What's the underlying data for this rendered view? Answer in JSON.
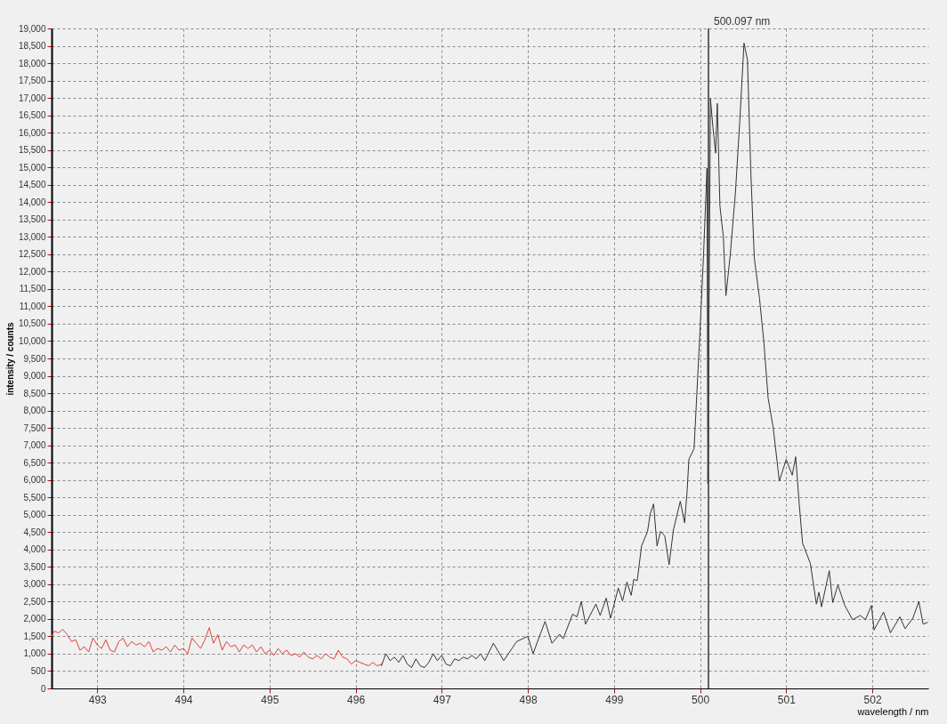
{
  "chart_data": {
    "type": "line",
    "xlabel": "wavelength / nm",
    "ylabel": "intensity / counts",
    "xlim": [
      492.47,
      502.65
    ],
    "ylim": [
      0,
      19000
    ],
    "xticks": [
      493,
      494,
      495,
      496,
      497,
      498,
      499,
      500,
      501,
      502
    ],
    "yticks": [
      0,
      500,
      {
        "value": 1000,
        "label": "1,000"
      },
      {
        "value": 1500,
        "label": "1,500"
      },
      {
        "value": 2000,
        "label": "2,000"
      },
      {
        "value": 2500,
        "label": "2,500"
      },
      {
        "value": 3000,
        "label": "3,000"
      },
      {
        "value": 3500,
        "label": "3,500"
      },
      {
        "value": 4000,
        "label": "4,000"
      },
      {
        "value": 4500,
        "label": "4,500"
      },
      {
        "value": 5000,
        "label": "5,000"
      },
      {
        "value": 5500,
        "label": "5,500"
      },
      {
        "value": 6000,
        "label": "6,000"
      },
      {
        "value": 6500,
        "label": "6,500"
      },
      {
        "value": 7000,
        "label": "7,000"
      },
      {
        "value": 7500,
        "label": "7,500"
      },
      {
        "value": 8000,
        "label": "8,000"
      },
      {
        "value": 8500,
        "label": "8,500"
      },
      {
        "value": 9000,
        "label": "9,000"
      },
      {
        "value": 9500,
        "label": "9,500"
      },
      {
        "value": 10000,
        "label": "10,000"
      },
      {
        "value": 10500,
        "label": "10,500"
      },
      {
        "value": 11000,
        "label": "11,000"
      },
      {
        "value": 11500,
        "label": "11,500"
      },
      {
        "value": 12000,
        "label": "12,000"
      },
      {
        "value": 12500,
        "label": "12,500"
      },
      {
        "value": 13000,
        "label": "13,000"
      },
      {
        "value": 13500,
        "label": "13,500"
      },
      {
        "value": 14000,
        "label": "14,000"
      },
      {
        "value": 14500,
        "label": "14,500"
      },
      {
        "value": 15000,
        "label": "15,000"
      },
      {
        "value": 15500,
        "label": "15,500"
      },
      {
        "value": 16000,
        "label": "16,000"
      },
      {
        "value": 16500,
        "label": "16,500"
      },
      {
        "value": 17000,
        "label": "17,000"
      },
      {
        "value": 17500,
        "label": "17,500"
      },
      {
        "value": 18000,
        "label": "18,000"
      },
      {
        "value": 18500,
        "label": "18,500"
      },
      {
        "value": 19000,
        "label": "19,000"
      }
    ],
    "grid": true,
    "line_style": "solid",
    "ref_lines": [
      {
        "axis": "x",
        "value": 500.097,
        "label": "500.097 nm",
        "color": "#333333"
      }
    ],
    "series": [
      {
        "color": "#e0403a",
        "x": [
          492.47,
          492.5,
          492.55,
          492.6,
          492.65,
          492.7,
          492.75,
          492.8,
          492.85,
          492.9,
          492.95,
          493.0,
          493.05,
          493.1,
          493.15,
          493.2,
          493.25,
          493.3,
          493.35,
          493.4,
          493.45,
          493.5,
          493.55,
          493.6,
          493.65,
          493.7,
          493.75,
          493.8,
          493.85,
          493.9,
          493.95,
          494.0,
          494.05,
          494.1,
          494.15,
          494.2,
          494.25,
          494.3,
          494.35,
          494.4,
          494.45,
          494.5,
          494.55,
          494.6,
          494.65,
          494.7,
          494.75,
          494.8,
          494.85,
          494.9,
          494.95,
          495.0,
          495.05,
          495.1,
          495.15,
          495.2,
          495.25,
          495.3,
          495.35,
          495.4,
          495.45,
          495.5,
          495.55,
          495.6,
          495.65,
          495.7,
          495.75,
          495.8,
          495.85,
          495.9,
          495.95,
          496.0,
          496.05,
          496.1,
          496.15,
          496.2,
          496.25,
          496.3
        ],
        "values": [
          1500,
          1650,
          1600,
          1700,
          1550,
          1350,
          1400,
          1100,
          1200,
          1050,
          1450,
          1250,
          1150,
          1400,
          1100,
          1050,
          1350,
          1450,
          1200,
          1350,
          1250,
          1300,
          1200,
          1350,
          1050,
          1150,
          1100,
          1200,
          1050,
          1250,
          1100,
          1150,
          1000,
          1450,
          1300,
          1150,
          1400,
          1750,
          1300,
          1550,
          1100,
          1350,
          1200,
          1250,
          1050,
          1250,
          1150,
          1250,
          1050,
          1200,
          1000,
          1100,
          950,
          1150,
          1000,
          1100,
          950,
          1000,
          900,
          1050,
          900,
          850,
          950,
          850,
          1000,
          900,
          850,
          1100,
          900,
          850,
          700,
          800,
          750,
          700,
          650,
          750,
          650,
          700
        ]
      },
      {
        "color": "#333333",
        "x": [
          496.3,
          496.35,
          496.4,
          496.45,
          496.5,
          496.55,
          496.6,
          496.65,
          496.7,
          496.75,
          496.8,
          496.85,
          496.9,
          496.95,
          497.0,
          497.05,
          497.1,
          497.15,
          497.2,
          497.25,
          497.3,
          497.35,
          497.4,
          497.45,
          497.5,
          497.6,
          497.72,
          497.87,
          498.0,
          498.06,
          498.2,
          498.28,
          498.37,
          498.41,
          498.52,
          498.57,
          498.62,
          498.67,
          498.79,
          498.84,
          498.91,
          498.96,
          499.05,
          499.1,
          499.15,
          499.2,
          499.23,
          499.27,
          499.32,
          499.39,
          499.42,
          499.46,
          499.5,
          499.54,
          499.59,
          499.64,
          499.69,
          499.77,
          499.82,
          499.85,
          499.87,
          499.93,
          500.0,
          500.04,
          500.08,
          500.09,
          500.12,
          500.15,
          500.18,
          500.2,
          500.23,
          500.27,
          500.3,
          500.35,
          500.41,
          500.46,
          500.51,
          500.55,
          500.59,
          500.63,
          500.69,
          500.74,
          500.79,
          500.85,
          500.92,
          501.0,
          501.07,
          501.11,
          501.15,
          501.19,
          501.28,
          501.35,
          501.38,
          501.41,
          501.5,
          501.54,
          501.6,
          501.68,
          501.77,
          501.86,
          501.92,
          501.99,
          502.02,
          502.13,
          502.21,
          502.32,
          502.38,
          502.47,
          502.54,
          502.59,
          502.64
        ],
        "values": [
          650,
          1000,
          800,
          900,
          750,
          950,
          700,
          600,
          850,
          650,
          600,
          750,
          1000,
          800,
          950,
          700,
          650,
          850,
          800,
          900,
          850,
          950,
          850,
          1000,
          800,
          1300,
          800,
          1350,
          1500,
          1000,
          1930,
          1300,
          1560,
          1430,
          2140,
          2060,
          2500,
          1850,
          2430,
          2100,
          2600,
          2020,
          2890,
          2520,
          3060,
          2680,
          3140,
          3100,
          4100,
          4520,
          5020,
          5310,
          4100,
          4520,
          4390,
          3560,
          4560,
          5390,
          4770,
          5700,
          6600,
          6900,
          10340,
          12480,
          14980,
          5900,
          16980,
          16130,
          15410,
          16840,
          13900,
          13000,
          11310,
          12480,
          14260,
          16300,
          18580,
          18100,
          14790,
          12380,
          11230,
          9990,
          8360,
          7490,
          5970,
          6590,
          6140,
          6670,
          5340,
          4180,
          3600,
          2430,
          2770,
          2350,
          3390,
          2470,
          2980,
          2390,
          1980,
          2100,
          1980,
          2390,
          1680,
          2200,
          1600,
          2060,
          1720,
          2020,
          2500,
          1850,
          1900
        ]
      }
    ]
  }
}
